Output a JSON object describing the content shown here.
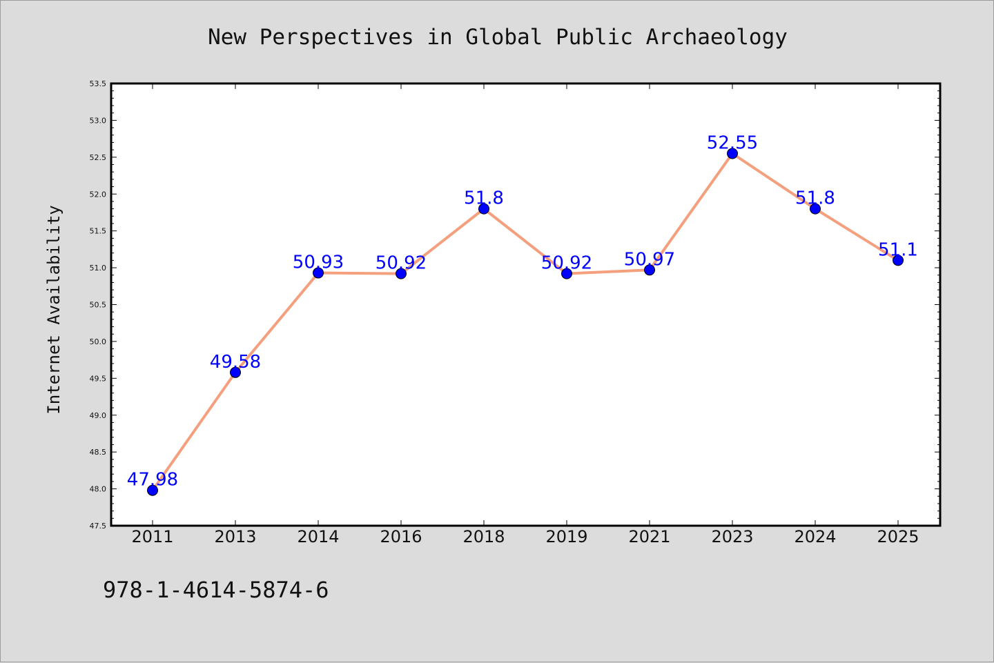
{
  "chart_data": {
    "type": "line",
    "title": "New Perspectives in Global Public Archaeology",
    "xlabel": "",
    "ylabel": "Internet Availability",
    "categories": [
      "2011",
      "2013",
      "2014",
      "2016",
      "2018",
      "2019",
      "2021",
      "2023",
      "2024",
      "2025"
    ],
    "series": [
      {
        "values": [
          47.98,
          49.58,
          50.93,
          50.92,
          51.8,
          50.92,
          50.97,
          52.55,
          51.8,
          51.1
        ],
        "data_labels": [
          "47.98",
          "49.58",
          "50.93",
          "50.92",
          "51.8",
          "50.92",
          "50.97",
          "52.55",
          "51.8",
          "51.1"
        ],
        "line_color": "#f4a07e",
        "marker_color": "#0000ff"
      }
    ],
    "ylim": [
      47.5,
      53.5
    ],
    "yticks": [
      "47.5",
      "48.0",
      "48.5",
      "49.0",
      "49.5",
      "50.0",
      "50.5",
      "51.0",
      "51.5",
      "52.0",
      "52.5",
      "53.0",
      "53.5"
    ],
    "grid": false,
    "legend": "none",
    "plot_background": "#ffffff",
    "figure_background": "#dcdcdc"
  },
  "footer": {
    "isbn": "978-1-4614-5874-6"
  }
}
